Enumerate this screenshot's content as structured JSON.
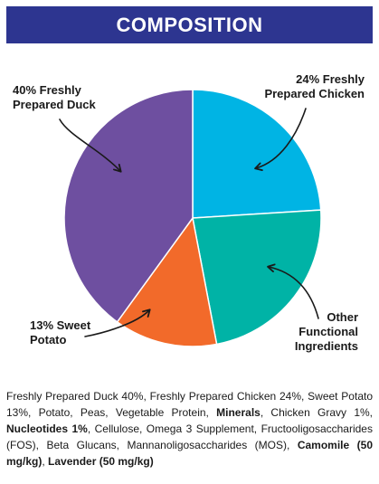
{
  "header": {
    "title": "COMPOSITION"
  },
  "colors": {
    "banner": "#2d3590",
    "duck": "#6e4fa0",
    "chicken": "#00b4e4",
    "other": "#00b3a6",
    "sweet_potato": "#f26a2a"
  },
  "chart_data": {
    "type": "pie",
    "title": "",
    "slices": [
      {
        "label_lines": [
          "24% Freshly",
          "Prepared Chicken"
        ],
        "value": 24,
        "color": "#00b4e4"
      },
      {
        "label_lines": [
          "Other",
          "Functional",
          "Ingredients"
        ],
        "value": 23,
        "color": "#00b3a6"
      },
      {
        "label_lines": [
          "13% Sweet",
          "Potato"
        ],
        "value": 13,
        "color": "#f26a2a"
      },
      {
        "label_lines": [
          "40% Freshly",
          "Prepared Duck"
        ],
        "value": 40,
        "color": "#6e4fa0"
      }
    ],
    "start_angle_deg": 0,
    "direction": "clockwise"
  },
  "composition": [
    {
      "text": "Freshly Prepared Duck 40%, Freshly Prepared Chicken 24%, Sweet Potato 13%, Potato, Peas, Vegetable Protein, ",
      "bold": false
    },
    {
      "text": "Minerals",
      "bold": true
    },
    {
      "text": ", Chicken Gravy 1%, ",
      "bold": false
    },
    {
      "text": "Nucleotides 1%",
      "bold": true
    },
    {
      "text": ", Cellulose, Omega 3 Supplement, Fructooligosaccharides (FOS), Beta Glucans, Mannanoligosaccharides (MOS), ",
      "bold": false
    },
    {
      "text": "Camomile (50 mg/kg)",
      "bold": true
    },
    {
      "text": ", ",
      "bold": false
    },
    {
      "text": "Lavender (50 mg/kg)",
      "bold": true
    }
  ]
}
